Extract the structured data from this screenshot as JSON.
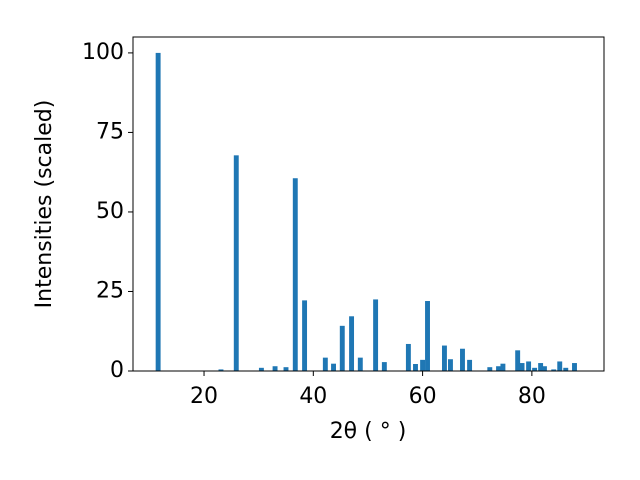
{
  "chart_data": {
    "type": "bar",
    "x_label": "2θ ( ° )",
    "y_label": "Intensities (scaled)",
    "color": "#1f77b4",
    "x": [
      11.6,
      23.1,
      25.9,
      30.5,
      33.0,
      35.0,
      36.7,
      38.4,
      42.2,
      43.7,
      45.3,
      47.0,
      48.6,
      51.4,
      53.0,
      57.4,
      58.7,
      60.0,
      60.9,
      64.0,
      65.1,
      67.3,
      68.6,
      72.3,
      73.9,
      74.7,
      77.4,
      78.2,
      79.4,
      80.5,
      81.6,
      82.3,
      84.0,
      85.1,
      86.2,
      87.8
    ],
    "values": [
      100,
      0.5,
      67.8,
      1,
      1.5,
      1.2,
      60.6,
      22.2,
      4.2,
      2.3,
      14.2,
      17.2,
      4.2,
      22.5,
      2.8,
      8.5,
      2.2,
      3.5,
      22,
      8,
      3.7,
      7,
      3.5,
      1.2,
      1.5,
      2.3,
      6.5,
      2.5,
      3,
      1,
      2.5,
      1.5,
      0.5,
      3,
      1,
      2.5
    ],
    "xlim": [
      7,
      93.2
    ],
    "ylim": [
      0,
      105
    ],
    "xticks": [
      20,
      40,
      60,
      80
    ],
    "yticks": [
      0,
      25,
      50,
      75,
      100
    ]
  }
}
